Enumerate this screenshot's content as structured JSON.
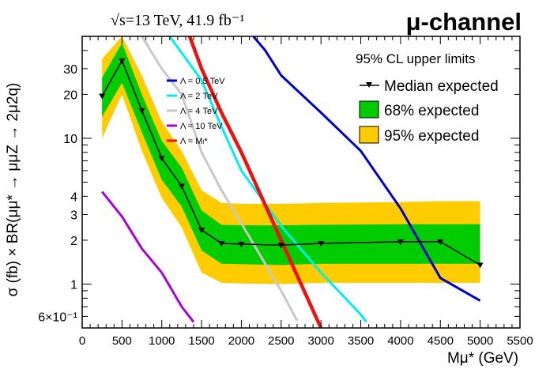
{
  "chart_data": {
    "type": "line",
    "title": "√s=13 TeV, 41.9 fb⁻¹",
    "channel_label": "μ-channel",
    "xlabel": "Mμ* (GeV)",
    "ylabel": "σ (fb) × BR(μμ* → μμZ → 2μ2q)",
    "xlim": [
      0,
      5500
    ],
    "ylim": [
      0.5,
      50
    ],
    "y_scale": "log",
    "x_ticks": [
      0,
      500,
      1000,
      1500,
      2000,
      2500,
      3000,
      3500,
      4000,
      4500,
      5000,
      5500
    ],
    "x_tick_labels": [
      "0",
      "500",
      "1000",
      "1500",
      "2000",
      "2500",
      "3000",
      "3500",
      "4000",
      "4500",
      "5000",
      "5500"
    ],
    "y_ticks": [
      0.6,
      1,
      2,
      3,
      4,
      10,
      20,
      30
    ],
    "y_tick_labels": [
      "6×10⁻¹",
      "1",
      "2",
      "3",
      "4",
      "10",
      "20",
      "30"
    ],
    "legend_main": {
      "header": "95% CL upper limits",
      "items": [
        {
          "label": "Median expected",
          "kind": "marker-line",
          "color": "#000000"
        },
        {
          "label": "68% expected",
          "kind": "box",
          "color": "#00cc00"
        },
        {
          "label": "95% expected",
          "kind": "box",
          "color": "#ffcc00"
        }
      ]
    },
    "legend_lambda": [
      {
        "label": "Λ = 0.5 TeV",
        "color": "#0000cc"
      },
      {
        "label": "Λ = 2 TeV",
        "color": "#00eeee"
      },
      {
        "label": "Λ = 4 TeV",
        "color": "#c8c8c8"
      },
      {
        "label": "Λ = 10 TeV",
        "color": "#aa00dd"
      },
      {
        "label": "Λ = Mₗ*",
        "color": "#ee1111"
      }
    ],
    "median": {
      "x": [
        250,
        500,
        750,
        1000,
        1250,
        1500,
        1750,
        2000,
        2500,
        3000,
        4000,
        4500,
        5000
      ],
      "y": [
        19.5,
        34,
        15.5,
        7.3,
        4.7,
        2.35,
        1.9,
        1.88,
        1.85,
        1.9,
        1.95,
        1.95,
        1.35
      ]
    },
    "band68": {
      "x": [
        250,
        500,
        750,
        1000,
        1250,
        1500,
        1750,
        2000,
        2500,
        3000,
        4000,
        4500,
        5000
      ],
      "low": [
        14,
        24,
        11,
        5.2,
        3.4,
        1.7,
        1.38,
        1.37,
        1.35,
        1.38,
        1.38,
        1.38,
        1.38
      ],
      "high": [
        26,
        45,
        20,
        9.6,
        6.3,
        3.2,
        2.55,
        2.53,
        2.53,
        2.55,
        2.57,
        2.57,
        2.57
      ]
    },
    "band95": {
      "x": [
        250,
        500,
        750,
        1000,
        1250,
        1500,
        1750,
        2000,
        2500,
        3000,
        4000,
        4500,
        5000
      ],
      "low": [
        10,
        20,
        8.2,
        3.9,
        2.45,
        1.2,
        1.02,
        1.01,
        1.0,
        1.02,
        1.02,
        1.02,
        1.02
      ],
      "high": [
        35,
        50,
        27,
        13,
        8.2,
        4.4,
        3.6,
        3.55,
        3.55,
        3.6,
        3.65,
        3.7,
        3.7
      ]
    },
    "theory": [
      {
        "name": "Λ = 0.5 TeV",
        "color": "#0000cc",
        "x": [
          2150,
          2300,
          2500,
          3000,
          3500,
          4000,
          4500,
          5000
        ],
        "y": [
          50,
          40,
          27,
          15,
          8.2,
          3.3,
          1.1,
          0.77
        ]
      },
      {
        "name": "Λ = 2 TeV",
        "color": "#00eeee",
        "x": [
          1100,
          1500,
          1750,
          2000,
          2500,
          3000,
          3500,
          3570
        ],
        "y": [
          50,
          25,
          12,
          6,
          2.5,
          1.2,
          0.62,
          0.55
        ]
      },
      {
        "name": "Λ = 4 TeV",
        "color": "#c8c8c8",
        "x": [
          750,
          1000,
          1250,
          1500,
          1750,
          2000,
          2500,
          2700
        ],
        "y": [
          50,
          30,
          20,
          8,
          4.4,
          2.6,
          0.9,
          0.56
        ]
      },
      {
        "name": "Λ = 10 TeV",
        "color": "#aa00dd",
        "x": [
          250,
          500,
          750,
          1000,
          1250,
          1400
        ],
        "y": [
          4.3,
          2.9,
          1.75,
          1.2,
          0.7,
          0.55
        ]
      },
      {
        "name": "Λ = Mₗ*",
        "color": "#ee1111",
        "x": [
          1350,
          1500,
          1750,
          2000,
          2500,
          3000
        ],
        "y": [
          50,
          30,
          15,
          8,
          2,
          0.5
        ]
      }
    ]
  }
}
